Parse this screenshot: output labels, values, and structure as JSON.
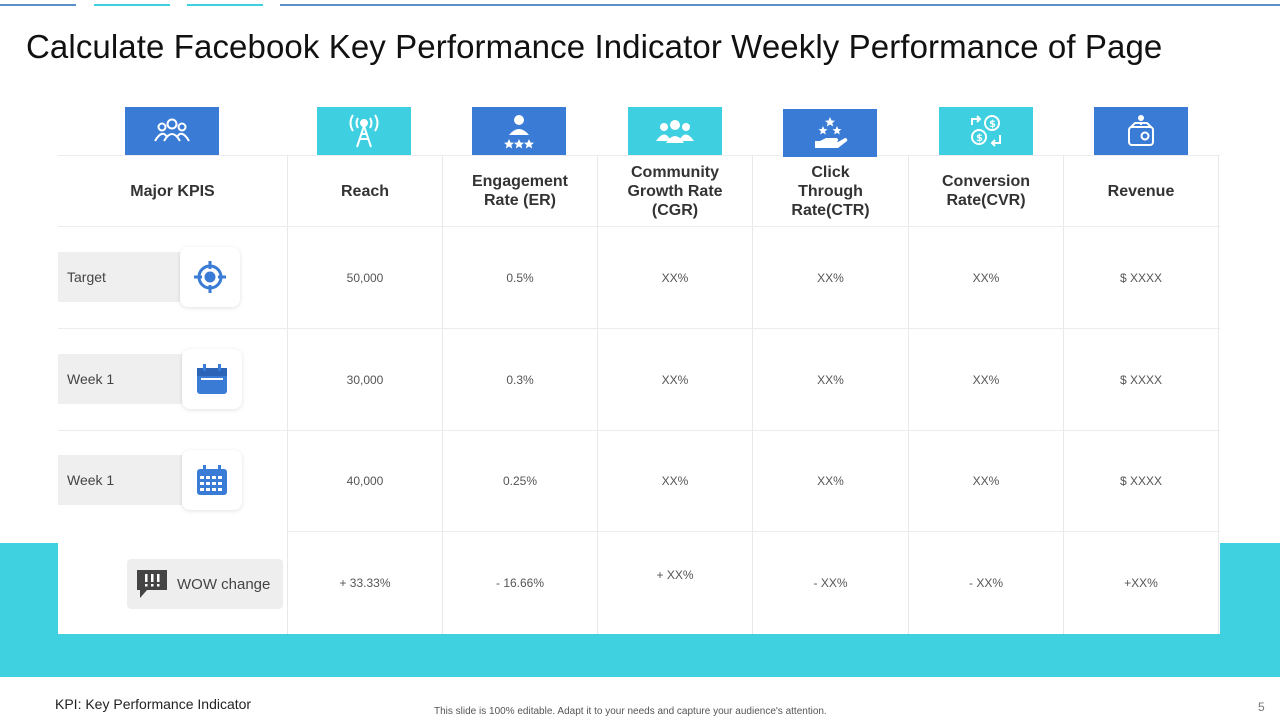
{
  "colors": {
    "accent_blue": "#3a7bd5",
    "accent_cyan": "#3ecfe0",
    "band_cyan": "#3fd1e0",
    "top_line": "#5a8fc7",
    "label_bg": "#efefef"
  },
  "title": "Calculate Facebook Key Performance Indicator Weekly Performance of Page",
  "columns": [
    {
      "label": "Major KPIS",
      "icon": "team-icon"
    },
    {
      "label": "Reach",
      "icon": "broadcast-tower-icon"
    },
    {
      "label": "Engagement Rate (ER)",
      "icon": "user-rating-icon"
    },
    {
      "label": "Community Growth Rate (CGR)",
      "icon": "group-icon"
    },
    {
      "label": "Click Through Rate(CTR)",
      "icon": "hand-stars-icon"
    },
    {
      "label": "Conversion Rate(CVR)",
      "icon": "currency-exchange-icon"
    },
    {
      "label": "Revenue",
      "icon": "wallet-icon"
    }
  ],
  "rows": [
    {
      "label": "Target",
      "icon": "target-icon",
      "values": [
        "50,000",
        "0.5%",
        "XX%",
        "XX%",
        "XX%",
        "$ XXXX"
      ]
    },
    {
      "label": "Week 1",
      "icon": "calendar-icon",
      "values": [
        "30,000",
        "0.3%",
        "XX%",
        "XX%",
        "XX%",
        "$ XXXX"
      ]
    },
    {
      "label": "Week 1",
      "icon": "calendar-grid-icon",
      "values": [
        "40,000",
        "0.25%",
        "XX%",
        "XX%",
        "XX%",
        "$ XXXX"
      ]
    }
  ],
  "wow": {
    "label": "WOW change",
    "icon": "chat-alert-icon",
    "values": [
      "+ 33.33%",
      "- 16.66%",
      "+ XX%",
      "- XX%",
      "- XX%",
      "+XX%"
    ]
  },
  "footnote": "KPI: Key Performance Indicator",
  "disclaimer": "This slide is 100% editable. Adapt it to your needs and capture your audience's attention.",
  "page_number": "5"
}
